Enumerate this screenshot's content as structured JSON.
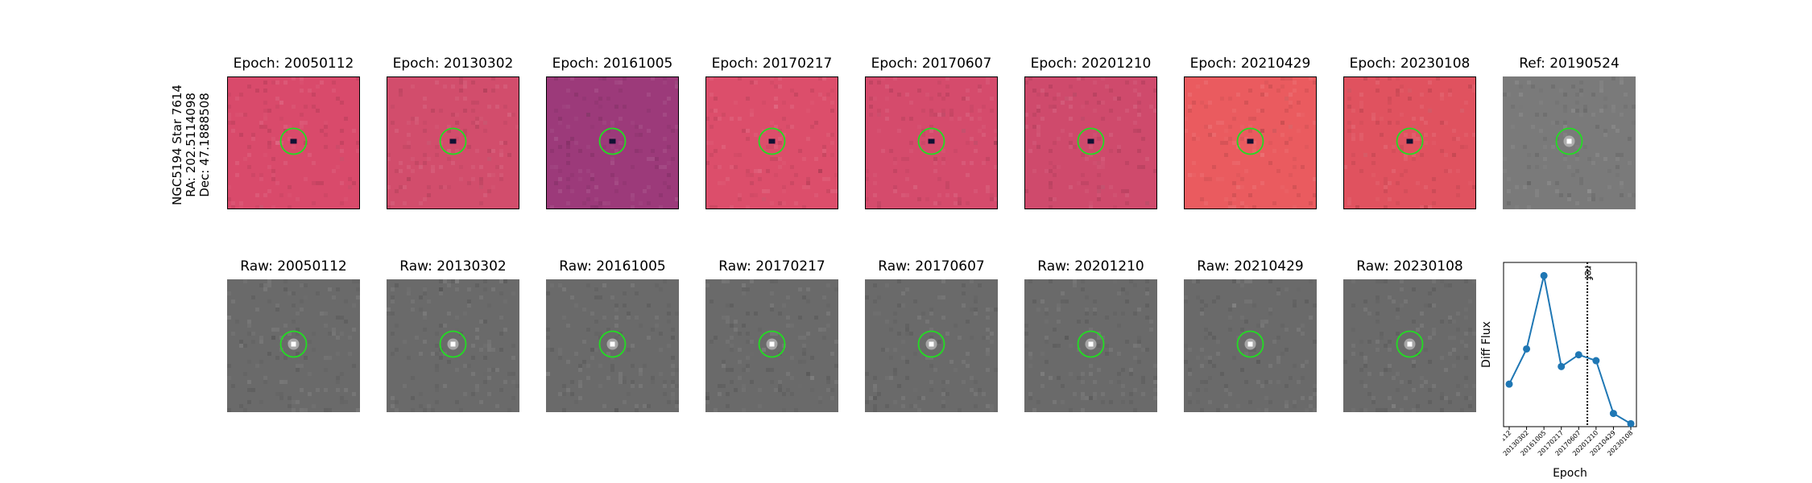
{
  "row_label": {
    "object": "NGC5194 Star 7614",
    "ra": "RA: 202.5114098",
    "dec": "Dec: 47.1888508"
  },
  "diff_titles": [
    "Epoch: 20050112",
    "Epoch: 20130302",
    "Epoch: 20161005",
    "Epoch: 20170217",
    "Epoch: 20170607",
    "Epoch: 20201210",
    "Epoch: 20210429",
    "Epoch: 20230108"
  ],
  "ref_title": "Ref: 20190524",
  "raw_titles": [
    "Raw: 20050112",
    "Raw: 20130302",
    "Raw: 20161005",
    "Raw: 20170217",
    "Raw: 20170607",
    "Raw: 20201210",
    "Raw: 20210429",
    "Raw: 20230108"
  ],
  "diff_colors": [
    "#d94a6b",
    "#d24d6c",
    "#9c3a7a",
    "#dc4e6b",
    "#d54b6c",
    "#cf4a6c",
    "#ea5b5f",
    "#e0525f"
  ],
  "colors": {
    "marker_circle": "#22dd22",
    "series": "#1f77b4",
    "raw_bg": "#6a6a6a",
    "ref_bg": "#7a7a7a"
  },
  "chart_data": {
    "type": "line",
    "x": [
      "20050112",
      "20130302",
      "20161005",
      "20170217",
      "20170607",
      "20201210",
      "20210429",
      "20230108"
    ],
    "values": [
      0.12,
      0.36,
      0.86,
      0.24,
      0.32,
      0.28,
      -0.08,
      -0.15
    ],
    "ylabel": "Diff Flux",
    "xlabel": "Epoch",
    "reference_line": {
      "after_index": 4,
      "label": "ref"
    },
    "ylim": [
      -0.17,
      0.95
    ]
  }
}
